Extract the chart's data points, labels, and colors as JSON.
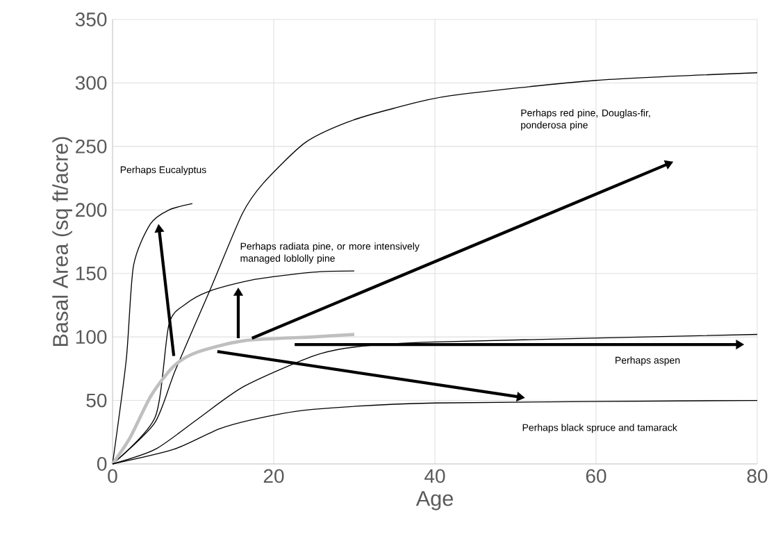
{
  "chart_data": {
    "type": "line",
    "xlabel": "Age",
    "ylabel": "Basal Area (sq ft/acre)",
    "xlim": [
      0,
      80
    ],
    "ylim": [
      0,
      350
    ],
    "xticks": [
      0,
      20,
      40,
      60,
      80
    ],
    "yticks": [
      0,
      50,
      100,
      150,
      200,
      250,
      300,
      350
    ],
    "grid": true,
    "series": [
      {
        "color": "#000000",
        "x": [
          0,
          1.7,
          2.6,
          4.7,
          7,
          9.9
        ],
        "values": [
          0,
          82,
          156,
          189,
          200,
          205
        ]
      },
      {
        "color": "#000000",
        "x": [
          0,
          5.2,
          7.8,
          12.1,
          16.1,
          18.7,
          23.9,
          29.1,
          34.9,
          42,
          60,
          80
        ],
        "values": [
          0,
          32,
          74,
          137,
          197,
          221,
          253,
          269,
          280,
          290,
          302,
          308
        ]
      },
      {
        "color": "#000000",
        "x": [
          0,
          5.3,
          7,
          9.1,
          12,
          17.4,
          24.9,
          30
        ],
        "values": [
          0,
          37,
          110,
          126,
          136,
          145,
          151,
          152
        ]
      },
      {
        "color": "#bfbfbf",
        "x": [
          0,
          2.2,
          4.8,
          7.6,
          10.5,
          16.3,
          24.9,
          30
        ],
        "values": [
          0,
          21,
          54,
          77,
          88,
          97,
          100,
          102
        ]
      },
      {
        "color": "#000000",
        "x": [
          0,
          5.3,
          10.5,
          16.3,
          24.9,
          30,
          40,
          80
        ],
        "values": [
          0,
          11.5,
          35,
          61,
          85,
          92,
          96,
          102
        ]
      },
      {
        "color": "#000000",
        "x": [
          0,
          7.6,
          13.4,
          18.9,
          24.9,
          40,
          80
        ],
        "values": [
          0,
          11.5,
          28,
          37,
          43,
          48,
          50
        ]
      }
    ],
    "annotations": [
      "Perhaps Eucalyptus",
      "Perhaps red pine, Douglas-fir, ponderosa pine",
      "Perhaps radiata pine, or more intensively managed loblolly pine",
      "Perhaps aspen",
      "Perhaps black spruce and tamarack"
    ]
  }
}
